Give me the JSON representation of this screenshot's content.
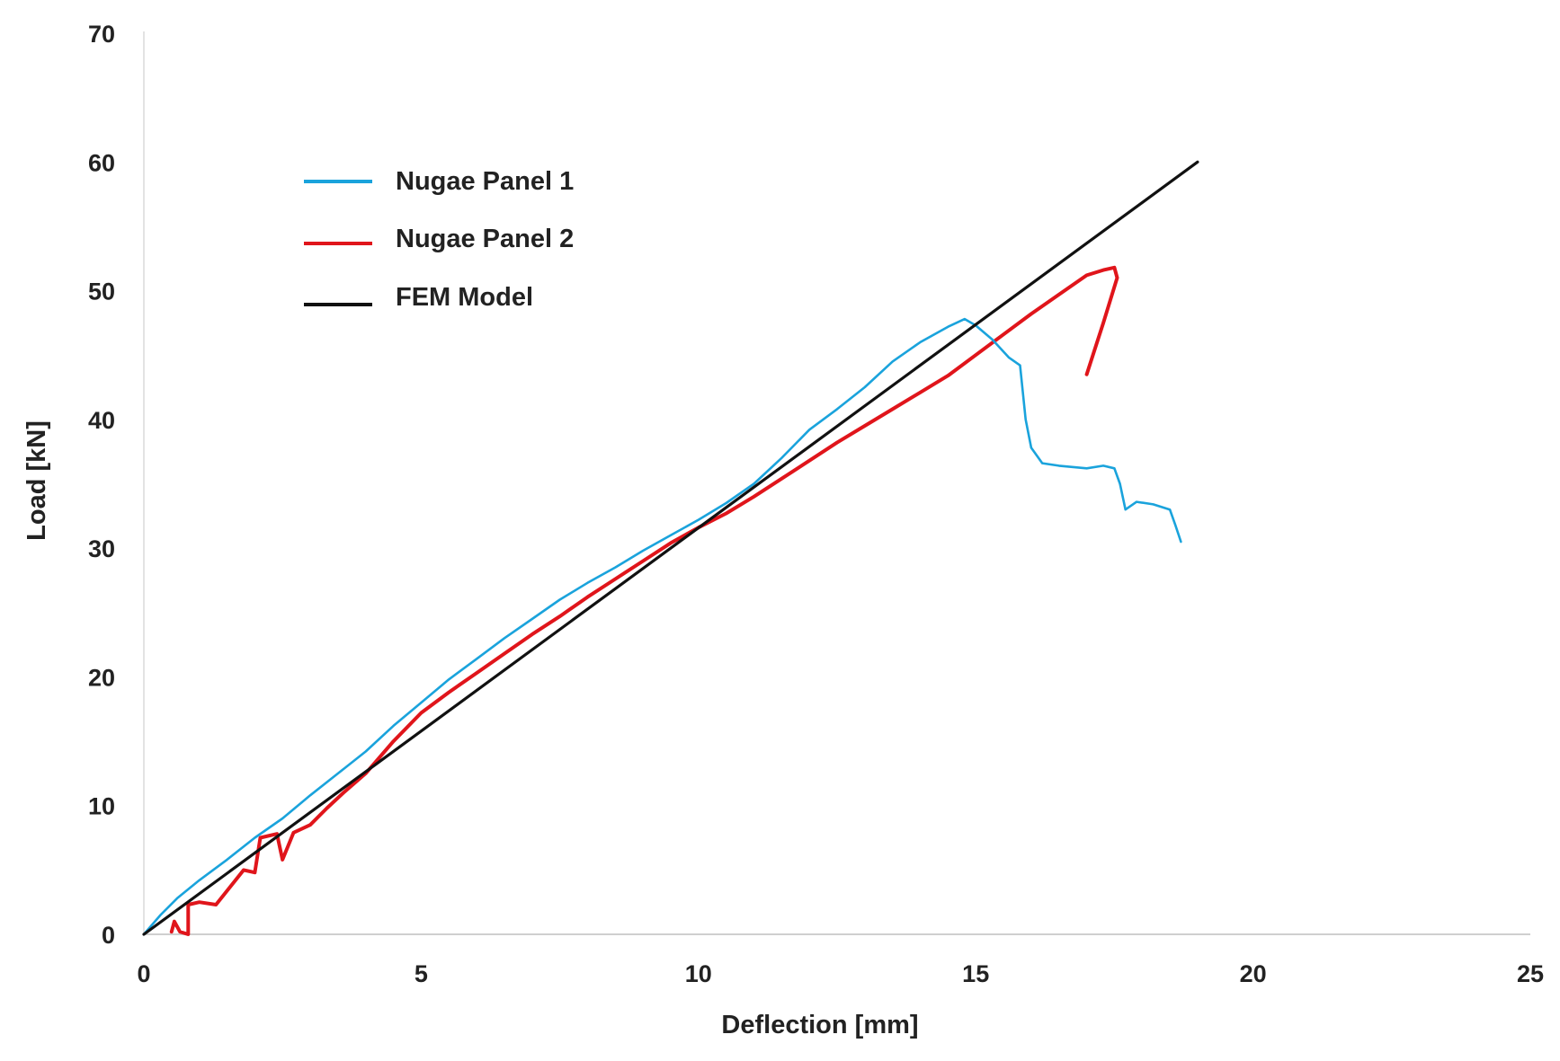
{
  "chart_data": {
    "type": "line",
    "title": "",
    "xlabel": "Deflection [mm]",
    "ylabel": "Load [kN]",
    "xlim": [
      0,
      25
    ],
    "ylim": [
      0,
      70
    ],
    "xticks": [
      0,
      5,
      10,
      15,
      20,
      25
    ],
    "yticks": [
      0,
      10,
      20,
      30,
      40,
      50,
      60,
      70
    ],
    "grid": false,
    "legend": {
      "placement": "top-left"
    },
    "series": [
      {
        "name": "Nugae Panel 1",
        "color": "#1aa3dc",
        "points": [
          [
            0,
            0
          ],
          [
            0.3,
            1.5
          ],
          [
            0.6,
            2.8
          ],
          [
            1.0,
            4.2
          ],
          [
            1.5,
            5.8
          ],
          [
            2.0,
            7.5
          ],
          [
            2.5,
            9.0
          ],
          [
            3.0,
            10.8
          ],
          [
            3.5,
            12.5
          ],
          [
            4.0,
            14.2
          ],
          [
            4.5,
            16.2
          ],
          [
            5.0,
            18.0
          ],
          [
            5.5,
            19.8
          ],
          [
            6.0,
            21.4
          ],
          [
            6.5,
            23.0
          ],
          [
            7.0,
            24.5
          ],
          [
            7.5,
            26.0
          ],
          [
            8.0,
            27.3
          ],
          [
            8.5,
            28.5
          ],
          [
            9.0,
            29.8
          ],
          [
            9.5,
            31.0
          ],
          [
            10.0,
            32.2
          ],
          [
            10.5,
            33.5
          ],
          [
            11.0,
            35.0
          ],
          [
            11.5,
            37.0
          ],
          [
            12.0,
            39.2
          ],
          [
            12.5,
            40.8
          ],
          [
            13.0,
            42.5
          ],
          [
            13.5,
            44.5
          ],
          [
            14.0,
            46.0
          ],
          [
            14.5,
            47.2
          ],
          [
            14.8,
            47.8
          ],
          [
            15.0,
            47.3
          ],
          [
            15.3,
            46.2
          ],
          [
            15.6,
            44.8
          ],
          [
            15.8,
            44.2
          ],
          [
            15.9,
            40.0
          ],
          [
            16.0,
            37.8
          ],
          [
            16.2,
            36.6
          ],
          [
            16.5,
            36.4
          ],
          [
            17.0,
            36.2
          ],
          [
            17.3,
            36.4
          ],
          [
            17.5,
            36.2
          ],
          [
            17.6,
            35.0
          ],
          [
            17.7,
            33.0
          ],
          [
            17.9,
            33.6
          ],
          [
            18.2,
            33.4
          ],
          [
            18.5,
            33.0
          ],
          [
            18.6,
            31.8
          ],
          [
            18.7,
            30.5
          ]
        ]
      },
      {
        "name": "Nugae Panel 2",
        "color": "#e0151b",
        "points": [
          [
            0.5,
            0.2
          ],
          [
            0.55,
            1.0
          ],
          [
            0.65,
            0.2
          ],
          [
            0.8,
            0.0
          ],
          [
            0.8,
            2.3
          ],
          [
            1.0,
            2.5
          ],
          [
            1.3,
            2.3
          ],
          [
            1.8,
            5.0
          ],
          [
            2.0,
            4.8
          ],
          [
            2.1,
            7.5
          ],
          [
            2.4,
            7.8
          ],
          [
            2.5,
            5.8
          ],
          [
            2.7,
            7.9
          ],
          [
            3.0,
            8.5
          ],
          [
            3.3,
            9.8
          ],
          [
            3.6,
            11.0
          ],
          [
            4.0,
            12.5
          ],
          [
            4.5,
            15.0
          ],
          [
            5.0,
            17.2
          ],
          [
            5.5,
            18.8
          ],
          [
            6.0,
            20.3
          ],
          [
            6.5,
            21.8
          ],
          [
            7.0,
            23.3
          ],
          [
            7.5,
            24.7
          ],
          [
            8.0,
            26.2
          ],
          [
            8.5,
            27.6
          ],
          [
            9.0,
            29.0
          ],
          [
            9.5,
            30.4
          ],
          [
            10.0,
            31.6
          ],
          [
            10.5,
            32.7
          ],
          [
            11.0,
            34.0
          ],
          [
            11.5,
            35.4
          ],
          [
            12.0,
            36.8
          ],
          [
            12.5,
            38.2
          ],
          [
            13.0,
            39.5
          ],
          [
            13.5,
            40.8
          ],
          [
            14.0,
            42.1
          ],
          [
            14.5,
            43.4
          ],
          [
            15.0,
            45.0
          ],
          [
            15.5,
            46.6
          ],
          [
            16.0,
            48.2
          ],
          [
            16.5,
            49.7
          ],
          [
            17.0,
            51.2
          ],
          [
            17.3,
            51.6
          ],
          [
            17.5,
            51.8
          ],
          [
            17.55,
            51.0
          ],
          [
            17.3,
            47.5
          ],
          [
            17.0,
            43.5
          ]
        ]
      },
      {
        "name": "FEM Model",
        "color": "#111111",
        "points": [
          [
            0,
            0
          ],
          [
            19.0,
            60.0
          ]
        ]
      }
    ]
  }
}
